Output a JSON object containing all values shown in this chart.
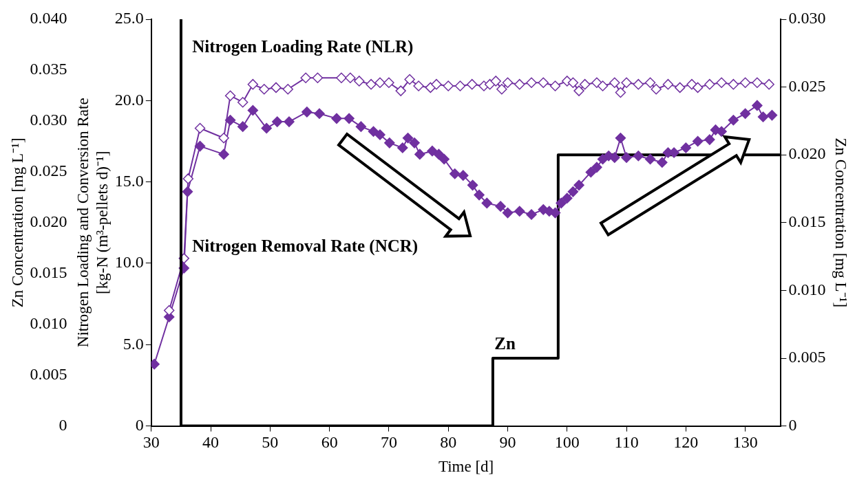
{
  "chart_data": {
    "type": "line",
    "xlabel": "Time [d]",
    "ylabel": "Nitrogen Loading and Conversion Rate [kg-N (m³-pellets d)⁻¹]",
    "y2label": "Zn Concentration [mg L⁻¹]",
    "y3label": "Zn Concentration [mg L⁻¹]",
    "xlim": [
      30,
      136
    ],
    "xticks": [
      30,
      40,
      50,
      60,
      70,
      80,
      90,
      100,
      110,
      120,
      130
    ],
    "ylim": [
      0,
      25
    ],
    "yticks": [
      0,
      {
        "value": 5,
        "label": "5.0"
      },
      {
        "value": 10,
        "label": "10.0"
      },
      {
        "value": 15,
        "label": "15.0"
      },
      {
        "value": 20,
        "label": "20.0"
      },
      {
        "value": 25,
        "label": "25.0"
      }
    ],
    "y2lim": [
      0,
      0.03
    ],
    "y2ticks": [
      0,
      0.005,
      {
        "value": 0.01,
        "label": "0.010"
      },
      0.015,
      {
        "value": 0.02,
        "label": "0.020"
      },
      0.025,
      {
        "value": 0.03,
        "label": "0.030"
      }
    ],
    "y3lim": [
      0,
      0.04
    ],
    "y3ticks": [
      0,
      0.005,
      {
        "value": 0.01,
        "label": "0.010"
      },
      0.015,
      {
        "value": 0.02,
        "label": "0.020"
      },
      0.025,
      {
        "value": 0.03,
        "label": "0.030"
      },
      0.035,
      {
        "value": 0.04,
        "label": "0.040"
      }
    ],
    "marker": "diamond",
    "legend": false,
    "series": [
      {
        "color": "#7030a0",
        "x": [
          33,
          35.5,
          36.2,
          38.2,
          42.2,
          43.3,
          45.4,
          47.1,
          49,
          51,
          53,
          56,
          58,
          62,
          63.5,
          65,
          67,
          68.5,
          70,
          72,
          73.5,
          75,
          77,
          78,
          80,
          82,
          84,
          86,
          87,
          88,
          89,
          90,
          92,
          94,
          96,
          98,
          100,
          101,
          102,
          103,
          105,
          106,
          108,
          109,
          110,
          112,
          114,
          115,
          117,
          119,
          121,
          122,
          124,
          126,
          128,
          130,
          132,
          134
        ],
        "values": [
          7.1,
          10.3,
          15.2,
          18.3,
          17.7,
          20.3,
          19.9,
          21.0,
          20.7,
          20.8,
          20.7,
          21.4,
          21.4,
          21.4,
          21.4,
          21.2,
          21.0,
          21.1,
          21.1,
          20.6,
          21.3,
          20.9,
          20.8,
          21.0,
          20.9,
          20.9,
          21.0,
          20.9,
          21.0,
          21.2,
          20.7,
          21.1,
          21.0,
          21.1,
          21.1,
          20.9,
          21.2,
          21.1,
          20.6,
          21.0,
          21.1,
          20.9,
          21.1,
          20.5,
          21.1,
          21.0,
          21.1,
          20.7,
          21.0,
          20.8,
          21.0,
          20.8,
          21.0,
          21.1,
          21.0,
          21.1,
          21.1,
          21.0
        ]
      },
      {
        "color": "#7030a0",
        "x": [
          30.5,
          33,
          35.5,
          36.1,
          38.2,
          42.2,
          43.3,
          45.4,
          47.1,
          49.4,
          51.2,
          53.2,
          56.2,
          58.3,
          61.2,
          63.3,
          65.3,
          67.4,
          68.5,
          70.1,
          72.3,
          73.2,
          74.3,
          75.2,
          77.3,
          78.4,
          79.3,
          81.1,
          82.5,
          84.1,
          85.2,
          86.5,
          88.8,
          90,
          92,
          94,
          96,
          97,
          98,
          99,
          100,
          101,
          102,
          104,
          105,
          106,
          107,
          108,
          109,
          110,
          112,
          114,
          116,
          117,
          118,
          120,
          122,
          124,
          125,
          126,
          128,
          130,
          132,
          133,
          134.5
        ],
        "values": [
          3.8,
          6.7,
          9.7,
          14.4,
          17.2,
          16.7,
          18.8,
          18.4,
          19.4,
          18.3,
          18.7,
          18.7,
          19.3,
          19.2,
          18.9,
          18.9,
          18.4,
          18.1,
          17.9,
          17.4,
          17.1,
          17.7,
          17.4,
          16.7,
          16.9,
          16.7,
          16.4,
          15.5,
          15.4,
          14.8,
          14.2,
          13.7,
          13.5,
          13.1,
          13.2,
          13.0,
          13.3,
          13.2,
          13.1,
          13.7,
          14.0,
          14.4,
          14.8,
          15.6,
          15.9,
          16.4,
          16.6,
          16.5,
          17.7,
          16.5,
          16.6,
          16.4,
          16.2,
          16.8,
          16.8,
          17.1,
          17.5,
          17.6,
          18.2,
          18.1,
          18.8,
          19.2,
          19.7,
          19.0,
          19.1
        ]
      },
      {
        "type": "step",
        "axis": "y2",
        "color": "#000000",
        "marker": "none",
        "x": [
          35,
          87.5,
          98.5,
          136
        ],
        "values": [
          0,
          0.005,
          0.02,
          0.02
        ]
      }
    ],
    "ref_lines": [
      {
        "axis": "x",
        "value": 35,
        "color": "#000000"
      }
    ],
    "annotations": [
      "Nitrogen Loading Rate (NLR)",
      "Nitrogen Removal Rate (NCR)",
      "Zn"
    ]
  }
}
